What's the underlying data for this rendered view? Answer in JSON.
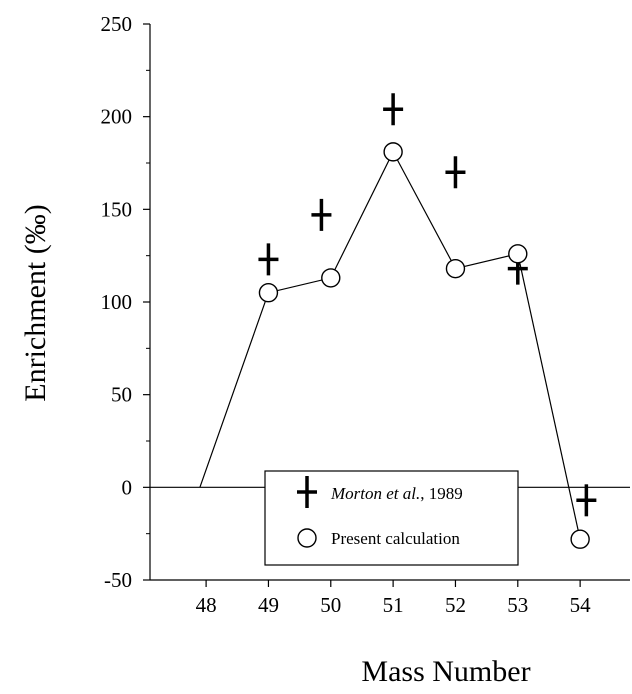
{
  "chart_data": {
    "type": "scatter",
    "xlabel": "Mass Number",
    "ylabel": "Enrichment (‰)",
    "xlim": [
      47.1,
      54.8
    ],
    "ylim": [
      -50,
      250
    ],
    "x_ticks": [
      48,
      49,
      50,
      51,
      52,
      53,
      54
    ],
    "y_ticks": [
      -50,
      0,
      50,
      100,
      150,
      200,
      250
    ],
    "grid": false,
    "zero_line": 0,
    "legend": {
      "placement": "bottom-center",
      "entries": [
        {
          "label_italic": "Morton et al.",
          "label_rest": ", 1989",
          "marker": "plus"
        },
        {
          "label": "Present calculation",
          "marker": "open-circle"
        }
      ]
    },
    "series": [
      {
        "marker": "plus",
        "points": [
          {
            "x": 49,
            "y": 123
          },
          {
            "x": 49.85,
            "y": 147
          },
          {
            "x": 51,
            "y": 204
          },
          {
            "x": 52,
            "y": 170
          },
          {
            "x": 53,
            "y": 118
          },
          {
            "x": 54.1,
            "y": -7
          }
        ]
      },
      {
        "marker": "open-circle",
        "line": true,
        "points": [
          {
            "x": 47.9,
            "y": 0
          },
          {
            "x": 49,
            "y": 105
          },
          {
            "x": 50,
            "y": 113
          },
          {
            "x": 51,
            "y": 181
          },
          {
            "x": 52,
            "y": 118
          },
          {
            "x": 53,
            "y": 126
          },
          {
            "x": 54,
            "y": -28
          }
        ]
      }
    ]
  }
}
